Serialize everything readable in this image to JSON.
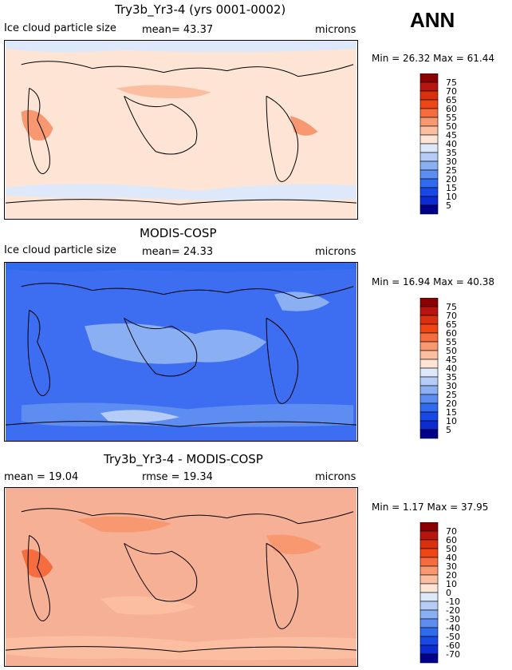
{
  "season": "ANN",
  "panels": [
    {
      "title": "Try3b_Yr3-4 (yrs 0001-0002)",
      "left_label": "Ice cloud particle size",
      "stat_label": "mean=  43.37",
      "units": "microns",
      "minmax": "Min =   26.32  Max =   61.44",
      "base_color": "#fde4d4",
      "colorbar_labels": [
        "75",
        "70",
        "65",
        "60",
        "55",
        "50",
        "45",
        "40",
        "35",
        "30",
        "25",
        "20",
        "15",
        "10",
        "5"
      ]
    },
    {
      "title": "MODIS-COSP",
      "left_label": "Ice cloud particle size",
      "stat_label": "mean=  24.33",
      "units": "microns",
      "minmax": "Min =   16.94  Max =   40.38",
      "base_color": "#3d6df0",
      "colorbar_labels": [
        "75",
        "70",
        "65",
        "60",
        "55",
        "50",
        "45",
        "40",
        "35",
        "30",
        "25",
        "20",
        "15",
        "10",
        "5"
      ]
    },
    {
      "title": "Try3b_Yr3-4 - MODIS-COSP",
      "left_label": "mean =  19.04",
      "stat_label": "rmse =  19.34",
      "units": "microns",
      "minmax": "Min =    1.17  Max =   37.95",
      "base_color": "#f6b096",
      "colorbar_labels": [
        "70",
        "60",
        "50",
        "40",
        "30",
        "20",
        "10",
        "0",
        "-10",
        "-20",
        "-30",
        "-40",
        "-50",
        "-60",
        "-70"
      ]
    }
  ],
  "colorbar_colors": [
    "#8b0000",
    "#b81410",
    "#d9300f",
    "#f04515",
    "#f56d3e",
    "#f89870",
    "#fbbea0",
    "#fde4d4",
    "#dde9fa",
    "#b5cdf6",
    "#8aaff3",
    "#5d8df0",
    "#2f6aef",
    "#1a48e6",
    "#0c2bd0",
    "#00008b"
  ],
  "chart_data": [
    {
      "type": "heatmap",
      "title": "Try3b_Yr3-4 (yrs 0001-0002)",
      "variable": "Ice cloud particle size",
      "units": "microns",
      "mean": 43.37,
      "min": 26.32,
      "max": 61.44,
      "levels": [
        5,
        10,
        15,
        20,
        25,
        30,
        35,
        40,
        45,
        50,
        55,
        60,
        65,
        70,
        75
      ]
    },
    {
      "type": "heatmap",
      "title": "MODIS-COSP",
      "variable": "Ice cloud particle size",
      "units": "microns",
      "mean": 24.33,
      "min": 16.94,
      "max": 40.38,
      "levels": [
        5,
        10,
        15,
        20,
        25,
        30,
        35,
        40,
        45,
        50,
        55,
        60,
        65,
        70,
        75
      ]
    },
    {
      "type": "heatmap",
      "title": "Try3b_Yr3-4 - MODIS-COSP",
      "units": "microns",
      "mean": 19.04,
      "rmse": 19.34,
      "min": 1.17,
      "max": 37.95,
      "levels": [
        -70,
        -60,
        -50,
        -40,
        -30,
        -20,
        -10,
        0,
        10,
        20,
        30,
        40,
        50,
        60,
        70
      ]
    }
  ]
}
